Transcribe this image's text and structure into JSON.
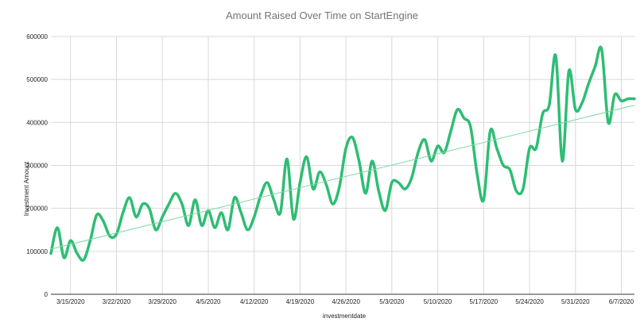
{
  "chart_data": {
    "type": "line",
    "title": "Amount Raised Over Time on StartEngine",
    "xlabel": "investmentdate",
    "ylabel": "Investment Amount",
    "ylim": [
      0,
      600000
    ],
    "y_ticks": [
      "0",
      "100000",
      "200000",
      "300000",
      "400000",
      "500000",
      "600000"
    ],
    "x_ticks": [
      "3/15/2020",
      "3/22/2020",
      "3/29/2020",
      "4/5/2020",
      "4/12/2020",
      "4/19/2020",
      "4/26/2020",
      "5/3/2020",
      "5/10/2020",
      "5/17/2020",
      "5/24/2020",
      "5/31/2020",
      "6/7/2020"
    ],
    "x_start": "3/12/2020",
    "x_end": "6/9/2020",
    "grid": true,
    "series": [
      {
        "color": "#2ebd74",
        "x": [
          "3/12/2020",
          "3/13/2020",
          "3/14/2020",
          "3/15/2020",
          "3/16/2020",
          "3/17/2020",
          "3/18/2020",
          "3/19/2020",
          "3/20/2020",
          "3/21/2020",
          "3/22/2020",
          "3/23/2020",
          "3/24/2020",
          "3/25/2020",
          "3/26/2020",
          "3/27/2020",
          "3/28/2020",
          "3/29/2020",
          "3/30/2020",
          "3/31/2020",
          "4/1/2020",
          "4/2/2020",
          "4/3/2020",
          "4/4/2020",
          "4/5/2020",
          "4/6/2020",
          "4/7/2020",
          "4/8/2020",
          "4/9/2020",
          "4/10/2020",
          "4/11/2020",
          "4/12/2020",
          "4/13/2020",
          "4/14/2020",
          "4/15/2020",
          "4/16/2020",
          "4/17/2020",
          "4/18/2020",
          "4/19/2020",
          "4/20/2020",
          "4/21/2020",
          "4/22/2020",
          "4/23/2020",
          "4/24/2020",
          "4/25/2020",
          "4/26/2020",
          "4/27/2020",
          "4/28/2020",
          "4/29/2020",
          "4/30/2020",
          "5/1/2020",
          "5/2/2020",
          "5/3/2020",
          "5/4/2020",
          "5/5/2020",
          "5/6/2020",
          "5/7/2020",
          "5/8/2020",
          "5/9/2020",
          "5/10/2020",
          "5/11/2020",
          "5/12/2020",
          "5/13/2020",
          "5/14/2020",
          "5/15/2020",
          "5/16/2020",
          "5/17/2020",
          "5/18/2020",
          "5/19/2020",
          "5/20/2020",
          "5/21/2020",
          "5/22/2020",
          "5/23/2020",
          "5/24/2020",
          "5/25/2020",
          "5/26/2020",
          "5/27/2020",
          "5/28/2020",
          "5/29/2020",
          "5/30/2020",
          "5/31/2020",
          "6/1/2020",
          "6/2/2020",
          "6/3/2020",
          "6/4/2020",
          "6/5/2020",
          "6/6/2020",
          "6/7/2020",
          "6/8/2020",
          "6/9/2020"
        ],
        "values": [
          95000,
          155000,
          85000,
          125000,
          95000,
          80000,
          125000,
          185000,
          170000,
          135000,
          140000,
          190000,
          225000,
          180000,
          210000,
          200000,
          150000,
          180000,
          210000,
          235000,
          210000,
          160000,
          220000,
          160000,
          195000,
          155000,
          190000,
          150000,
          225000,
          190000,
          150000,
          180000,
          230000,
          260000,
          220000,
          190000,
          315000,
          175000,
          260000,
          320000,
          245000,
          285000,
          255000,
          210000,
          250000,
          340000,
          365000,
          310000,
          235000,
          310000,
          240000,
          195000,
          260000,
          260000,
          245000,
          270000,
          330000,
          360000,
          310000,
          345000,
          330000,
          380000,
          430000,
          410000,
          390000,
          280000,
          220000,
          380000,
          340000,
          300000,
          290000,
          240000,
          245000,
          340000,
          340000,
          420000,
          440000,
          555000,
          310000,
          520000,
          430000,
          445000,
          490000,
          530000,
          570000,
          400000,
          465000,
          450000,
          455000,
          455000
        ]
      },
      {
        "color": "#7dd9a4",
        "x": [
          "3/12/2020",
          "6/9/2020"
        ],
        "values": [
          105000,
          440000
        ]
      }
    ]
  }
}
